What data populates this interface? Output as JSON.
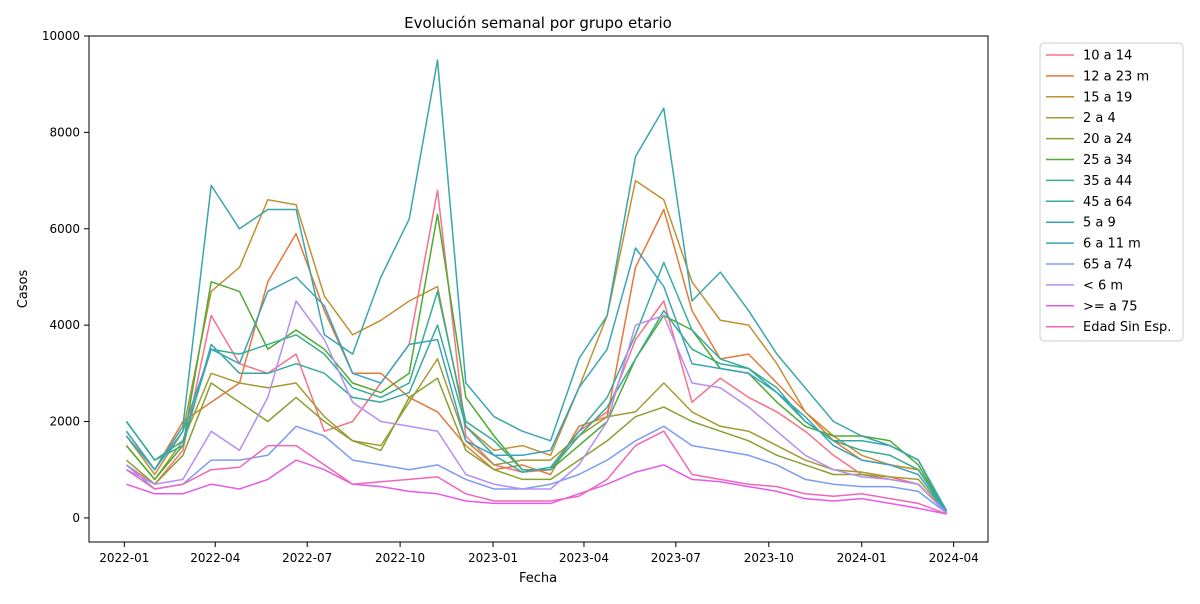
{
  "chart_data": {
    "type": "line",
    "title": "Evolución semanal por grupo etario",
    "xlabel": "Fecha",
    "ylabel": "Casos",
    "ylim": [
      -500,
      10000
    ],
    "xlim": [
      "2021-11-27",
      "2024-05-05"
    ],
    "x_ticks": [
      "2022-01",
      "2022-04",
      "2022-07",
      "2022-10",
      "2023-01",
      "2023-04",
      "2023-07",
      "2023-10",
      "2024-01",
      "2024-04"
    ],
    "y_ticks": [
      0,
      2000,
      4000,
      6000,
      8000,
      10000
    ],
    "grid": false,
    "legend_position": "outside-right",
    "x": [
      "2022-01-03",
      "2022-01-31",
      "2022-02-28",
      "2022-03-28",
      "2022-04-25",
      "2022-05-23",
      "2022-06-20",
      "2022-07-18",
      "2022-08-15",
      "2022-09-12",
      "2022-10-10",
      "2022-11-07",
      "2022-12-05",
      "2023-01-02",
      "2023-01-30",
      "2023-02-27",
      "2023-03-27",
      "2023-04-24",
      "2023-05-22",
      "2023-06-19",
      "2023-07-17",
      "2023-08-14",
      "2023-09-11",
      "2023-10-09",
      "2023-11-06",
      "2023-12-04",
      "2024-01-01",
      "2024-01-29",
      "2024-02-26",
      "2024-03-25"
    ],
    "series": [
      {
        "name": "10 a 14",
        "color": "#f77189",
        "values": [
          1100,
          700,
          1400,
          4200,
          3200,
          3000,
          3400,
          1800,
          2000,
          2800,
          3600,
          6800,
          1700,
          1100,
          950,
          1000,
          1800,
          2200,
          3700,
          4500,
          2400,
          2900,
          2500,
          2200,
          1800,
          1300,
          900,
          850,
          700,
          100
        ]
      },
      {
        "name": "12 a 23 m",
        "color": "#e5793b",
        "values": [
          1800,
          1000,
          2000,
          2400,
          2800,
          4900,
          5900,
          4300,
          3000,
          3000,
          2500,
          2200,
          1500,
          1000,
          1100,
          900,
          1900,
          2100,
          5200,
          6400,
          4300,
          3300,
          3400,
          2800,
          2200,
          1600,
          1200,
          1100,
          1000,
          150
        ]
      },
      {
        "name": "15 a 19",
        "color": "#c48f33",
        "values": [
          1700,
          900,
          1800,
          4700,
          5200,
          6600,
          6500,
          4600,
          3800,
          4100,
          4500,
          4800,
          1900,
          1400,
          1500,
          1300,
          2700,
          4200,
          7000,
          6600,
          4900,
          4100,
          4000,
          3200,
          2200,
          1700,
          1300,
          1100,
          1000,
          150
        ]
      },
      {
        "name": "2 a 4",
        "color": "#a59a31",
        "values": [
          1500,
          800,
          1600,
          3000,
          2800,
          2700,
          2800,
          2100,
          1600,
          1500,
          2400,
          3300,
          1600,
          1100,
          1200,
          1200,
          1700,
          2100,
          2200,
          2800,
          2200,
          1900,
          1800,
          1500,
          1200,
          1000,
          950,
          850,
          800,
          100
        ]
      },
      {
        "name": "20 a 24",
        "color": "#88a131",
        "values": [
          1200,
          700,
          1300,
          2800,
          2400,
          2000,
          2500,
          2000,
          1600,
          1400,
          2500,
          2900,
          1400,
          1000,
          800,
          800,
          1200,
          1600,
          2100,
          2300,
          2000,
          1800,
          1600,
          1300,
          1100,
          900,
          900,
          800,
          700,
          100
        ]
      },
      {
        "name": "25 a 34",
        "color": "#4eab31",
        "values": [
          1500,
          800,
          1500,
          4900,
          4700,
          3500,
          3900,
          3500,
          2800,
          2600,
          3000,
          6300,
          2500,
          1700,
          1000,
          1000,
          1500,
          2000,
          3300,
          4200,
          3900,
          3100,
          3000,
          2400,
          1900,
          1700,
          1700,
          1600,
          1100,
          100
        ]
      },
      {
        "name": "35 a 44",
        "color": "#34ae8e",
        "values": [
          2000,
          1200,
          1600,
          3500,
          3400,
          3600,
          3800,
          3400,
          2700,
          2500,
          2800,
          4700,
          2000,
          1600,
          1000,
          1000,
          1700,
          2300,
          3300,
          4300,
          3500,
          3200,
          3100,
          2600,
          2000,
          1600,
          1400,
          1300,
          1000,
          100
        ]
      },
      {
        "name": "45 a 64",
        "color": "#37aa9e",
        "values": [
          2000,
          1200,
          1500,
          3600,
          3000,
          3000,
          3200,
          3000,
          2500,
          2400,
          2600,
          4000,
          1900,
          1300,
          950,
          1050,
          1800,
          2500,
          3800,
          5300,
          3900,
          3300,
          3100,
          2700,
          2000,
          1600,
          1600,
          1500,
          1200,
          100
        ]
      },
      {
        "name": "5 a 9",
        "color": "#3aa6ab",
        "values": [
          1700,
          1000,
          1900,
          6900,
          6000,
          6400,
          6400,
          3800,
          3400,
          5000,
          6200,
          9500,
          2800,
          2100,
          1800,
          1600,
          3300,
          4200,
          7500,
          8500,
          4500,
          5100,
          4300,
          3400,
          2700,
          2000,
          1700,
          1500,
          1200,
          150
        ]
      },
      {
        "name": "6 a 11 m",
        "color": "#3ba3be",
        "values": [
          1800,
          1000,
          1800,
          3500,
          3200,
          4700,
          5000,
          4400,
          3000,
          2800,
          3600,
          3700,
          1600,
          1300,
          1300,
          1400,
          2700,
          3500,
          5600,
          4800,
          3200,
          3100,
          3000,
          2600,
          2100,
          1500,
          1200,
          1100,
          900,
          100
        ]
      },
      {
        "name": "65 a 74",
        "color": "#7d9cf3",
        "values": [
          1100,
          600,
          700,
          1200,
          1200,
          1300,
          1900,
          1700,
          1200,
          1100,
          1000,
          1100,
          800,
          600,
          600,
          700,
          900,
          1200,
          1600,
          1900,
          1500,
          1400,
          1300,
          1100,
          800,
          700,
          650,
          650,
          550,
          100
        ]
      },
      {
        "name": "< 6 m",
        "color": "#b58ef3",
        "values": [
          1000,
          700,
          800,
          1800,
          1400,
          2500,
          4500,
          3700,
          2400,
          2000,
          1900,
          1800,
          900,
          700,
          600,
          600,
          1100,
          2000,
          4000,
          4200,
          2800,
          2700,
          2300,
          1800,
          1300,
          1000,
          850,
          800,
          700,
          100
        ]
      },
      {
        "name": ">= a 75",
        "color": "#e55ae9",
        "values": [
          700,
          500,
          500,
          700,
          600,
          800,
          1200,
          1000,
          700,
          650,
          550,
          500,
          350,
          300,
          300,
          300,
          500,
          700,
          950,
          1100,
          800,
          750,
          650,
          550,
          400,
          350,
          400,
          300,
          200,
          80
        ]
      },
      {
        "name": "Edad Sin Esp.",
        "color": "#f266b9",
        "values": [
          1000,
          600,
          700,
          1000,
          1050,
          1500,
          1500,
          1100,
          700,
          750,
          800,
          850,
          500,
          350,
          350,
          350,
          450,
          800,
          1500,
          1800,
          900,
          800,
          700,
          650,
          500,
          450,
          500,
          400,
          300,
          80
        ]
      }
    ]
  }
}
